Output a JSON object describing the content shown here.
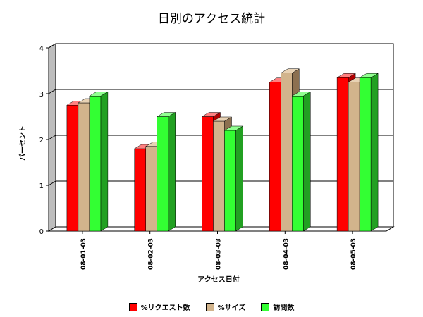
{
  "chart_data": {
    "type": "bar",
    "title": "日別のアクセス統計",
    "xlabel": "アクセス日付",
    "ylabel": "パーセント",
    "categories": [
      "08-01-03",
      "08-02-03",
      "08-03-03",
      "08-04-03",
      "08-05-03"
    ],
    "series": [
      {
        "name": "%リクエスト数",
        "values": [
          2.75,
          1.8,
          2.5,
          3.25,
          3.35
        ],
        "color": "#ff0000",
        "side_color": "#b00000",
        "top_color": "#ff8080"
      },
      {
        "name": "%サイズ",
        "values": [
          2.8,
          1.85,
          2.4,
          3.45,
          3.25
        ],
        "color": "#d2b48c",
        "side_color": "#8c7050",
        "top_color": "#e8d2b4"
      },
      {
        "name": "訪問数",
        "values": [
          2.95,
          2.5,
          2.2,
          2.95,
          3.35
        ],
        "color": "#33ff33",
        "side_color": "#22a022",
        "top_color": "#90ff90"
      }
    ],
    "ylim": [
      0,
      4
    ],
    "yticks": [
      0,
      1,
      2,
      3,
      4
    ],
    "grid": true,
    "legend": "bottom"
  }
}
